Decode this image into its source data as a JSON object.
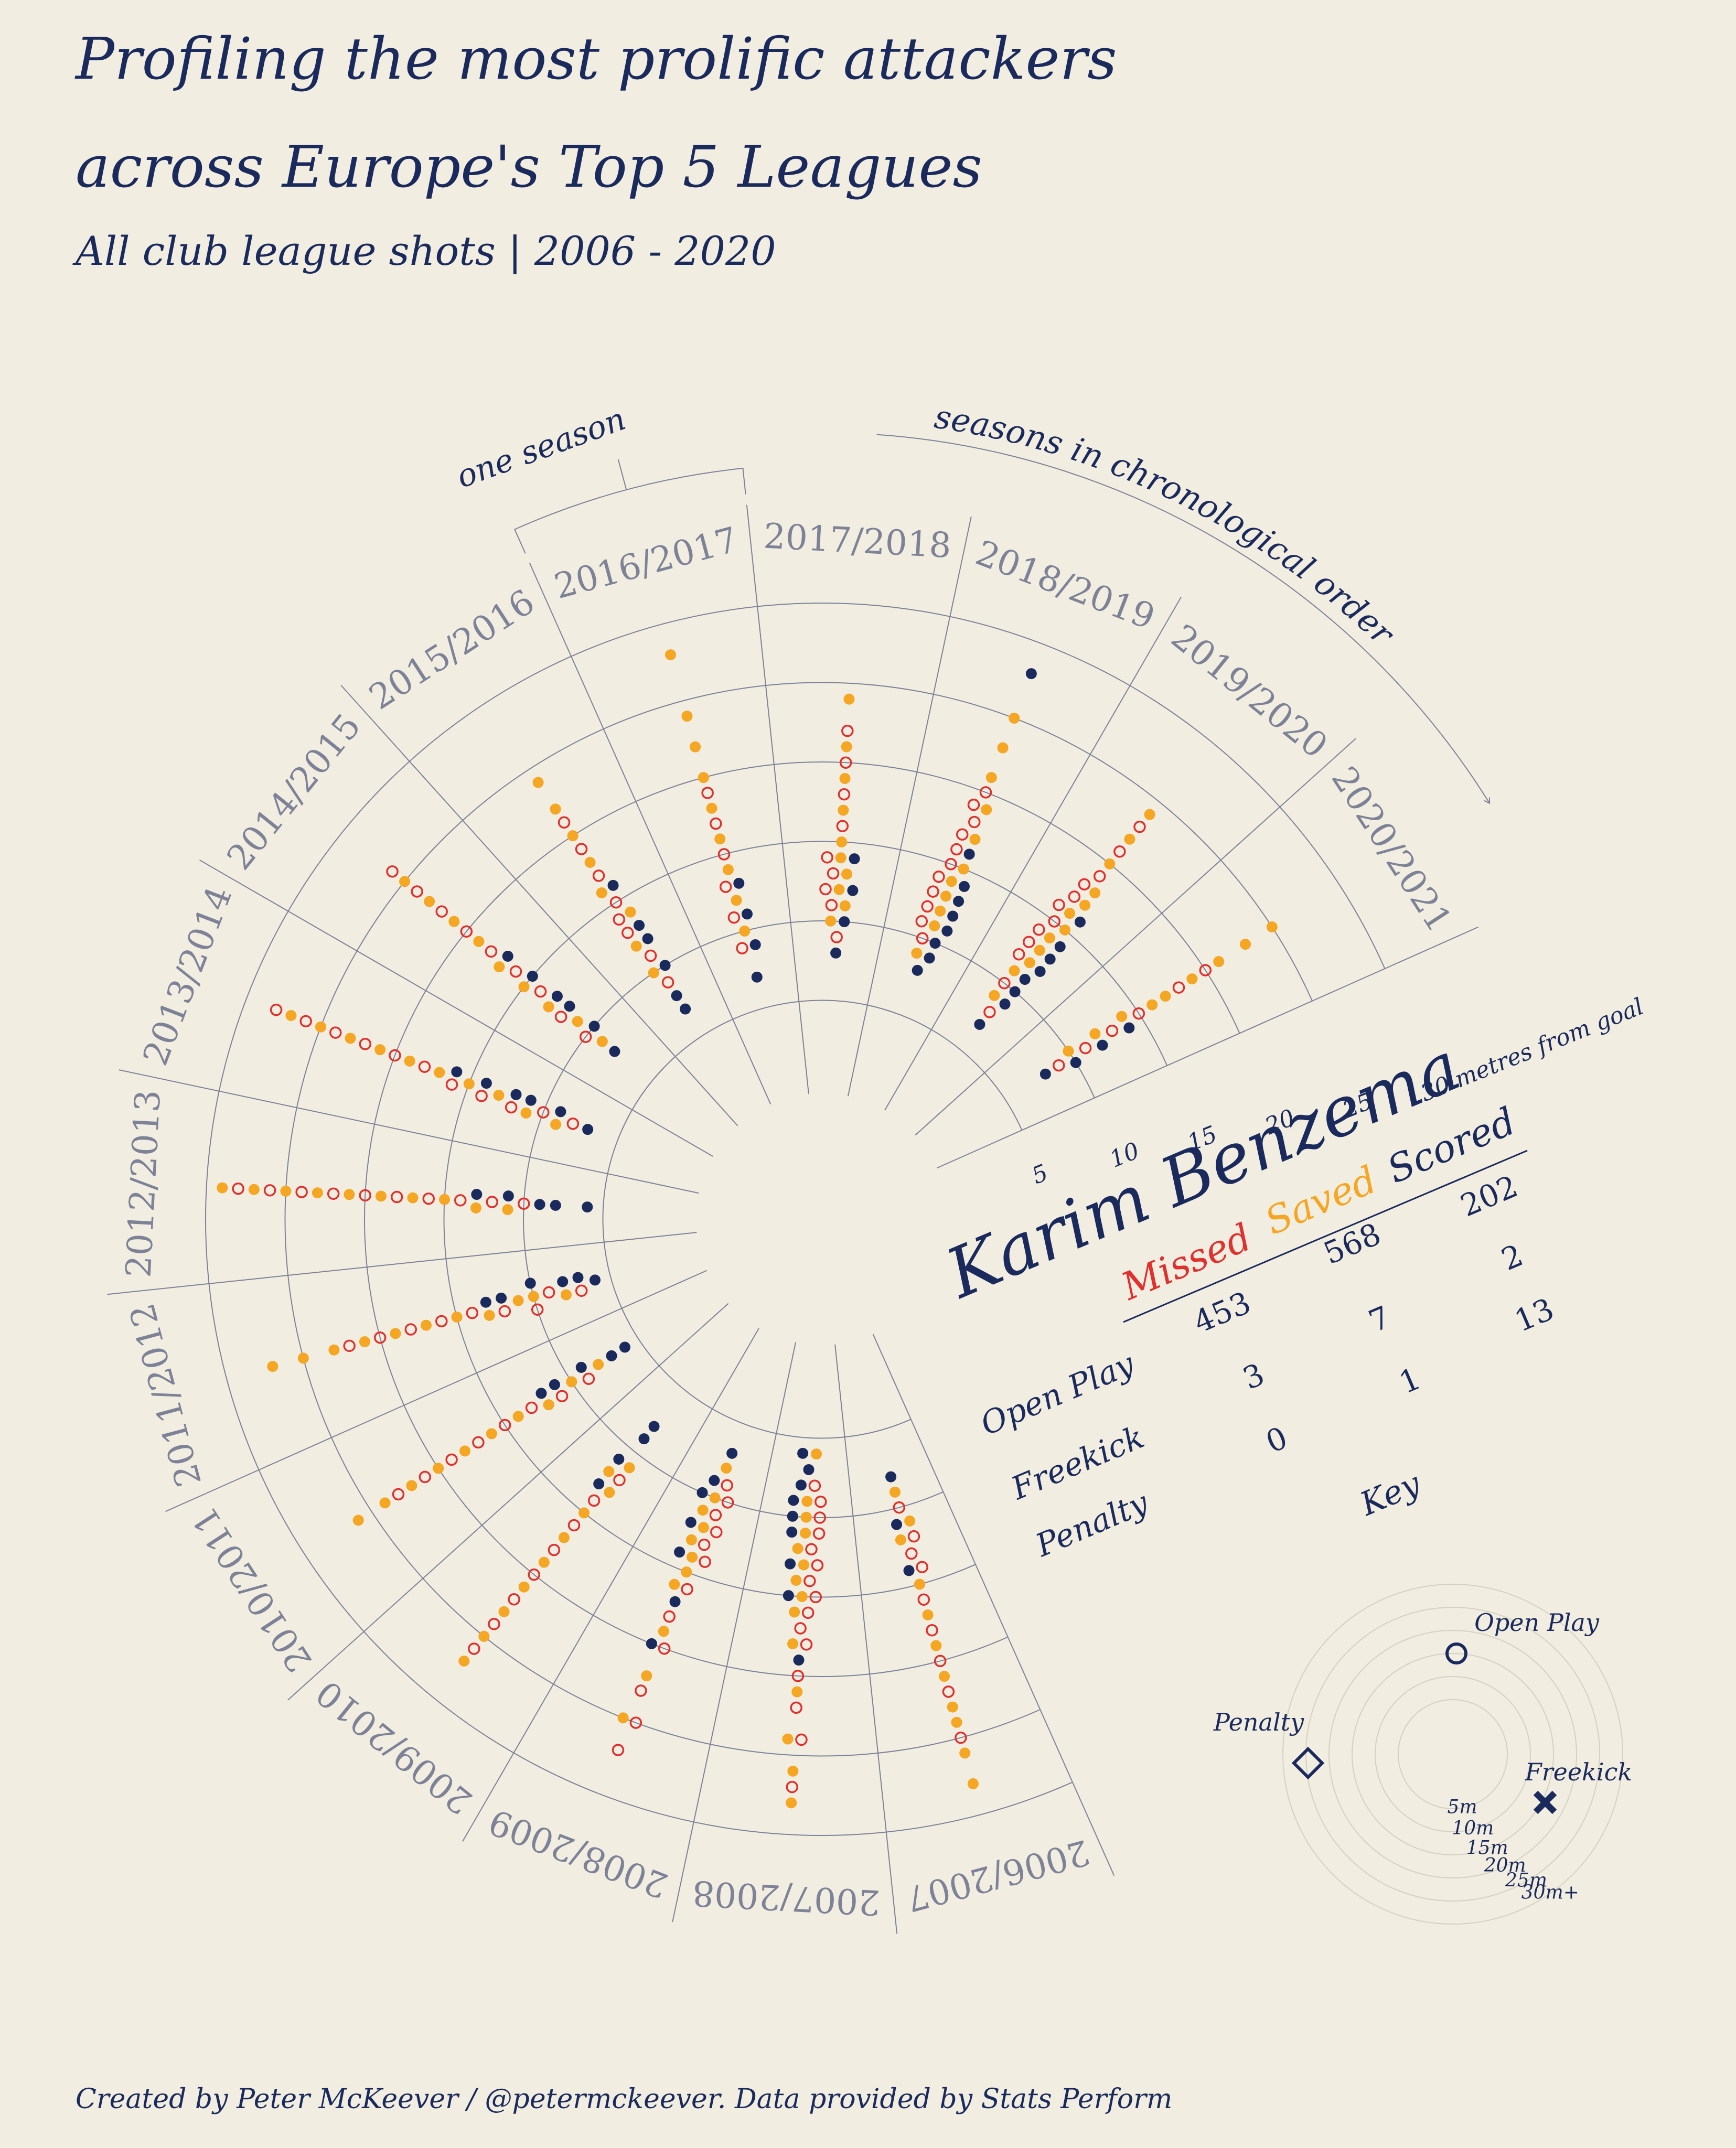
{
  "chart_data": {
    "type": "radial-dot",
    "title": [
      "Profiling the most prolific attackers",
      "across Europe's Top 5 Leagues"
    ],
    "subtitle": "All club league shots | 2006 - 2020",
    "player": "Karim Benzema",
    "categories": [
      "2006/2007",
      "2007/2008",
      "2008/2009",
      "2009/2010",
      "2010/2011",
      "2011/2012",
      "2012/2013",
      "2013/2014",
      "2014/2015",
      "2015/2016",
      "2016/2017",
      "2017/2018",
      "2018/2019",
      "2019/2020",
      "2020/2021"
    ],
    "rlim": [
      0,
      30
    ],
    "rticks": [
      5,
      10,
      15,
      20,
      25,
      {
        "value": 30,
        "label": "30 metres from goal"
      }
    ],
    "grid": true,
    "series": [
      {
        "name": "Missed",
        "color": "#e0312f",
        "hollow": true,
        "values": [
          [
            10,
            12,
            13,
            14,
            16,
            18,
            20,
            22,
            25
          ],
          [
            8,
            9,
            10,
            11,
            12,
            13,
            14,
            15,
            16,
            17,
            18,
            20,
            22,
            24,
            27
          ],
          [
            9,
            10,
            11,
            12,
            13,
            14,
            16,
            18,
            20,
            23,
            25,
            27
          ],
          [
            12,
            14,
            16,
            18,
            20,
            22,
            24,
            26
          ],
          [
            9,
            11,
            13,
            15,
            17,
            19,
            21,
            23
          ],
          [
            7,
            9,
            10,
            12,
            14,
            16,
            18,
            20,
            22
          ],
          [
            10,
            12,
            14,
            16,
            18,
            20,
            22,
            24,
            26,
            28
          ],
          [
            8,
            10,
            12,
            14,
            16,
            18,
            20,
            22,
            24,
            26,
            28
          ],
          [
            10,
            12,
            14,
            16,
            18,
            20,
            22,
            24,
            26
          ],
          [
            9,
            11,
            13,
            14,
            15,
            17,
            19,
            21
          ],
          [
            9,
            11,
            13,
            15,
            17,
            19
          ],
          [
            9,
            11,
            12,
            13,
            14,
            16,
            18,
            20,
            22
          ],
          [
            10,
            11,
            12,
            13,
            14,
            15,
            16,
            17,
            18,
            19,
            20
          ],
          [
            8,
            10,
            12,
            13,
            14,
            15,
            16,
            17,
            18,
            19,
            21,
            23
          ],
          [
            9,
            11,
            13,
            15,
            18,
            20
          ]
        ]
      },
      {
        "name": "Saved",
        "color": "#f5a623",
        "hollow": false,
        "values": [
          [
            9,
            11,
            12,
            15,
            17,
            19,
            21,
            23,
            24,
            26,
            28
          ],
          [
            6,
            9,
            10,
            11,
            12,
            13,
            14,
            15,
            16,
            18,
            21,
            24,
            26,
            28
          ],
          [
            8,
            10,
            11,
            12,
            13,
            14,
            15,
            16,
            19,
            22,
            25
          ],
          [
            11,
            12,
            13,
            15,
            17,
            19,
            21,
            23,
            25,
            27
          ],
          [
            8,
            10,
            12,
            14,
            16,
            18,
            20,
            22,
            24,
            26
          ],
          [
            8,
            10,
            11,
            13,
            15,
            17,
            19,
            21,
            23,
            25,
            27
          ],
          [
            11,
            13,
            15,
            17,
            19,
            21,
            23,
            25,
            27,
            29
          ],
          [
            9,
            11,
            13,
            15,
            17,
            19,
            21,
            23,
            25,
            27
          ],
          [
            9,
            11,
            13,
            15,
            17,
            19,
            21,
            23,
            25
          ],
          [
            10,
            12,
            14,
            16,
            18,
            20,
            22,
            24
          ],
          [
            10,
            12,
            14,
            16,
            18,
            20,
            22,
            24,
            28
          ],
          [
            10,
            11,
            12,
            13,
            14,
            15,
            17,
            19,
            21,
            24
          ],
          [
            9,
            11,
            12,
            13,
            14,
            15,
            17,
            19,
            21,
            23,
            25
          ],
          [
            9,
            11,
            12,
            13,
            14,
            15,
            16,
            17,
            18,
            20,
            22,
            24
          ],
          [
            10,
            12,
            14,
            16,
            17,
            19,
            21,
            23,
            25
          ]
        ]
      },
      {
        "name": "Scored",
        "color": "#1b2a5c",
        "hollow": false,
        "values": [
          [
            8,
            11,
            14
          ],
          [
            6,
            7,
            8,
            9,
            10,
            11,
            13,
            15,
            19
          ],
          [
            7,
            9,
            10,
            12,
            14,
            17,
            20
          ],
          [
            8,
            9,
            11,
            13
          ],
          [
            6,
            7,
            9,
            11,
            12
          ],
          [
            6,
            7,
            8,
            10,
            12,
            13
          ],
          [
            6,
            8,
            9,
            11,
            13
          ],
          [
            7,
            9,
            11,
            12,
            14,
            16
          ],
          [
            8,
            10,
            12,
            13,
            15,
            17
          ],
          [
            7,
            8,
            10,
            12,
            13,
            16
          ],
          [
            7,
            9,
            11,
            13
          ],
          [
            8,
            10,
            12,
            14
          ],
          [
            8,
            9,
            10,
            11,
            12,
            13,
            14,
            16,
            28
          ],
          [
            7,
            9,
            10,
            11,
            12,
            13,
            14,
            16
          ],
          [
            8,
            10,
            12,
            14
          ]
        ]
      }
    ],
    "table": {
      "rows": [
        {
          "label": "Open Play",
          "values": [
            453,
            568,
            202
          ]
        },
        {
          "label": "Freekick",
          "values": [
            3,
            7,
            2
          ]
        },
        {
          "label": "Penalty",
          "values": [
            0,
            1,
            13
          ]
        }
      ]
    },
    "annotations": {
      "one_season": "one season",
      "order": "seasons in chronological order"
    },
    "key": {
      "title": "Key",
      "items": [
        "Open Play",
        "Penalty",
        "Freekick"
      ],
      "ticks": [
        {
          "value": 5,
          "label": "5m"
        },
        {
          "value": 10,
          "label": "10m"
        },
        {
          "value": 15,
          "label": "15m"
        },
        {
          "value": 20,
          "label": "20m"
        },
        {
          "value": 25,
          "label": "25m"
        },
        {
          "value": 30,
          "label": "30m+"
        }
      ]
    },
    "credit": "Created by Peter McKeever / @petermckeever. Data provided by Stats Perform"
  }
}
